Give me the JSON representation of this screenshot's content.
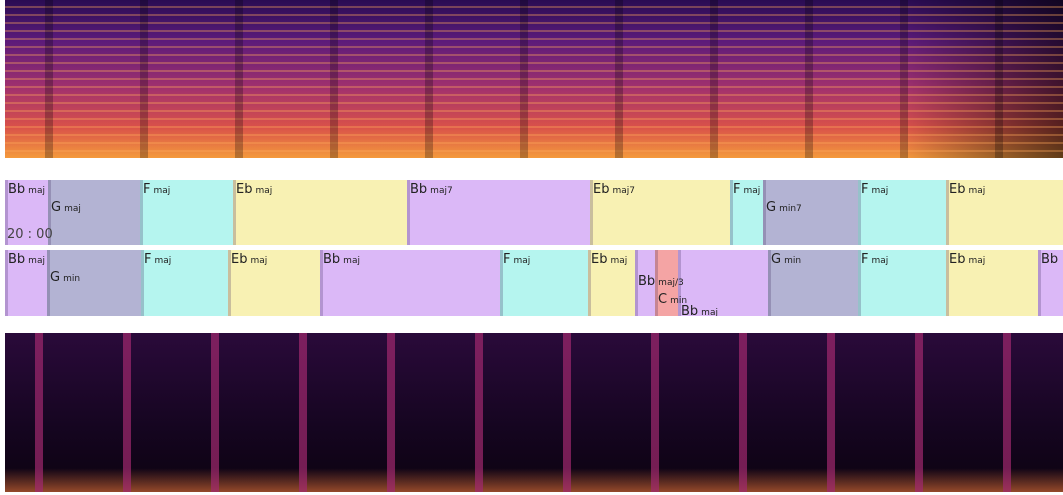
{
  "time": "20 : 00",
  "rows": [
    {
      "chords": [
        {
          "root": "Bb",
          "quality": "maj",
          "color": "#dbb8f7"
        },
        {
          "root": "G",
          "quality": "maj",
          "color": "#b3b3d3"
        },
        {
          "root": "F",
          "quality": "maj",
          "color": "#b5f5ef"
        },
        {
          "root": "Eb",
          "quality": "maj",
          "color": "#f8f1b3"
        },
        {
          "root": "Bb",
          "quality": "maj7",
          "color": "#dbb8f7"
        },
        {
          "root": "Eb",
          "quality": "maj7",
          "color": "#f8f1b3"
        },
        {
          "root": "F",
          "quality": "maj",
          "color": "#b5f5ef"
        },
        {
          "root": "G",
          "quality": "min7",
          "color": "#b3b3d3"
        },
        {
          "root": "F",
          "quality": "maj",
          "color": "#b5f5ef"
        },
        {
          "root": "Eb",
          "quality": "maj",
          "color": "#f8f1b3"
        }
      ]
    },
    {
      "chords": [
        {
          "root": "Bb",
          "quality": "maj",
          "color": "#dbb8f7"
        },
        {
          "root": "G",
          "quality": "min",
          "color": "#b3b3d3"
        },
        {
          "root": "F",
          "quality": "maj",
          "color": "#b5f5ef"
        },
        {
          "root": "Eb",
          "quality": "maj",
          "color": "#f8f1b3"
        },
        {
          "root": "Bb",
          "quality": "maj",
          "color": "#dbb8f7"
        },
        {
          "root": "F",
          "quality": "maj",
          "color": "#b5f5ef"
        },
        {
          "root": "Eb",
          "quality": "maj",
          "color": "#f8f1b3"
        },
        {
          "root": "Bb",
          "quality": "maj/3",
          "color": "#dbb8f7"
        },
        {
          "root": "C",
          "quality": "min",
          "color": "#f4a4a4"
        },
        {
          "root": "Bb",
          "quality": "maj",
          "color": "#dbb8f7"
        },
        {
          "root": "G",
          "quality": "min",
          "color": "#b3b3d3"
        },
        {
          "root": "F",
          "quality": "maj",
          "color": "#b5f5ef"
        },
        {
          "root": "Eb",
          "quality": "maj",
          "color": "#f8f1b3"
        },
        {
          "root": "Bb",
          "color": "#dbb8f7"
        }
      ]
    }
  ]
}
